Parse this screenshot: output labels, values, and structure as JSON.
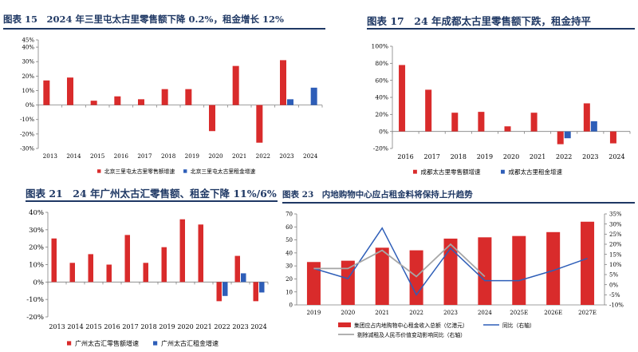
{
  "colors": {
    "red": "#d92b2b",
    "blue": "#2e5eb8",
    "navy": "#1f3864",
    "gray": "#a6a6a6",
    "axis": "#7f7f7f"
  },
  "panels": [
    {
      "title": "图表 15　2024 年三里屯太古里零售额下降 0.2%，租金增长 12%"
    },
    {
      "title": "图表 17　24 年成都太古里零售额下跌，租金持平"
    },
    {
      "title": "图表 21　24 年广州太古汇零售额、租金下降 11%/6%"
    },
    {
      "title": "图表 23　内地购物中心应占租金料将保持上升趋势"
    }
  ],
  "chart_data": [
    {
      "type": "bar",
      "categories": [
        "2013",
        "2014",
        "2015",
        "2016",
        "2017",
        "2018",
        "2019",
        "2020",
        "2021",
        "2022",
        "2023",
        "2024"
      ],
      "series": [
        {
          "name": "北京三里屯太古里零售额增速",
          "color": "#d92b2b",
          "values": [
            17,
            19,
            3,
            6,
            4,
            11,
            11,
            -18,
            27,
            -26,
            31,
            null
          ]
        },
        {
          "name": "北京三里屯太古里租金增速",
          "color": "#2e5eb8",
          "values": [
            null,
            null,
            null,
            null,
            null,
            null,
            null,
            null,
            null,
            null,
            4,
            12
          ]
        }
      ],
      "ylim": [
        -30,
        45
      ],
      "yticks": [
        -30,
        -20,
        -10,
        0,
        10,
        20,
        30,
        40
      ],
      "ytick_labels": [
        "-30%",
        "-20%",
        "-10%",
        "0%",
        "10%",
        "20%",
        "30%",
        "40%"
      ],
      "extra_tick": {
        "value": 45,
        "label": "45%"
      },
      "legend": "bottom"
    },
    {
      "type": "bar",
      "categories": [
        "2016",
        "2017",
        "2018",
        "2019",
        "2020",
        "2021",
        "2022",
        "2023",
        "2024"
      ],
      "series": [
        {
          "name": "成都太古里零售额增速",
          "color": "#d92b2b",
          "values": [
            78,
            49,
            22,
            23,
            6,
            22,
            -15,
            33,
            -14
          ]
        },
        {
          "name": "成都太古里租金增速",
          "color": "#2e5eb8",
          "values": [
            null,
            null,
            null,
            null,
            null,
            null,
            -8,
            12,
            null
          ]
        }
      ],
      "ylim": [
        -20,
        100
      ],
      "yticks": [
        -20,
        0,
        20,
        40,
        60,
        80,
        100
      ],
      "ytick_labels": [
        "-20%",
        "0%",
        "20%",
        "40%",
        "60%",
        "80%",
        "100%"
      ],
      "legend": "bottom"
    },
    {
      "type": "bar",
      "categories": [
        "2013",
        "2014",
        "2015",
        "2016",
        "2017",
        "2018",
        "2019",
        "2020",
        "2021",
        "2022",
        "2023",
        "2024"
      ],
      "series": [
        {
          "name": "广州太古汇零售额增速",
          "color": "#d92b2b",
          "values": [
            25,
            11,
            16,
            10,
            27,
            11,
            20,
            36,
            33,
            -11,
            15,
            -11
          ]
        },
        {
          "name": "广州太古汇租金增速",
          "color": "#2e5eb8",
          "values": [
            null,
            null,
            null,
            null,
            null,
            null,
            null,
            null,
            null,
            -8,
            5,
            -6
          ]
        }
      ],
      "ylim": [
        -20,
        40
      ],
      "yticks": [
        -20,
        -10,
        0,
        10,
        20,
        30,
        40
      ],
      "ytick_labels": [
        "-20%",
        "-10%",
        "0%",
        "10%",
        "20%",
        "30%",
        "40%"
      ],
      "legend": "bottom"
    },
    {
      "type": "bar",
      "categories": [
        "2019",
        "2020",
        "2021",
        "2022",
        "2023",
        "2024",
        "2025E",
        "2026E",
        "2027E"
      ],
      "series": [
        {
          "name": "集团应占内地购物中心租金收入总额（亿港元）",
          "color": "#d92b2b",
          "axis": "left",
          "values": [
            33,
            34,
            44,
            42,
            51,
            52,
            53,
            56,
            64
          ]
        },
        {
          "name": "同比（右轴）",
          "color": "#2e5eb8",
          "axis": "right",
          "values": [
            8,
            3,
            28,
            -5,
            18,
            2,
            2,
            7,
            13
          ]
        },
        {
          "name": "剔除减租及人民币价值变动影响同比（右轴）",
          "color": "#a6a6a6",
          "axis": "right",
          "values": [
            8,
            8,
            17,
            4,
            20,
            4,
            null,
            null,
            null
          ]
        }
      ],
      "ylim": [
        0,
        70
      ],
      "yticks": [
        0,
        10,
        20,
        30,
        40,
        50,
        60,
        70
      ],
      "y2lim": [
        -10,
        35
      ],
      "y2ticks": [
        -10,
        -5,
        0,
        5,
        10,
        15,
        20,
        25,
        30,
        35
      ],
      "y2tick_labels": [
        "-10%",
        "-5%",
        "0%",
        "5%",
        "10%",
        "15%",
        "20%",
        "25%",
        "30%",
        "35%"
      ],
      "legend": "bottom"
    }
  ]
}
